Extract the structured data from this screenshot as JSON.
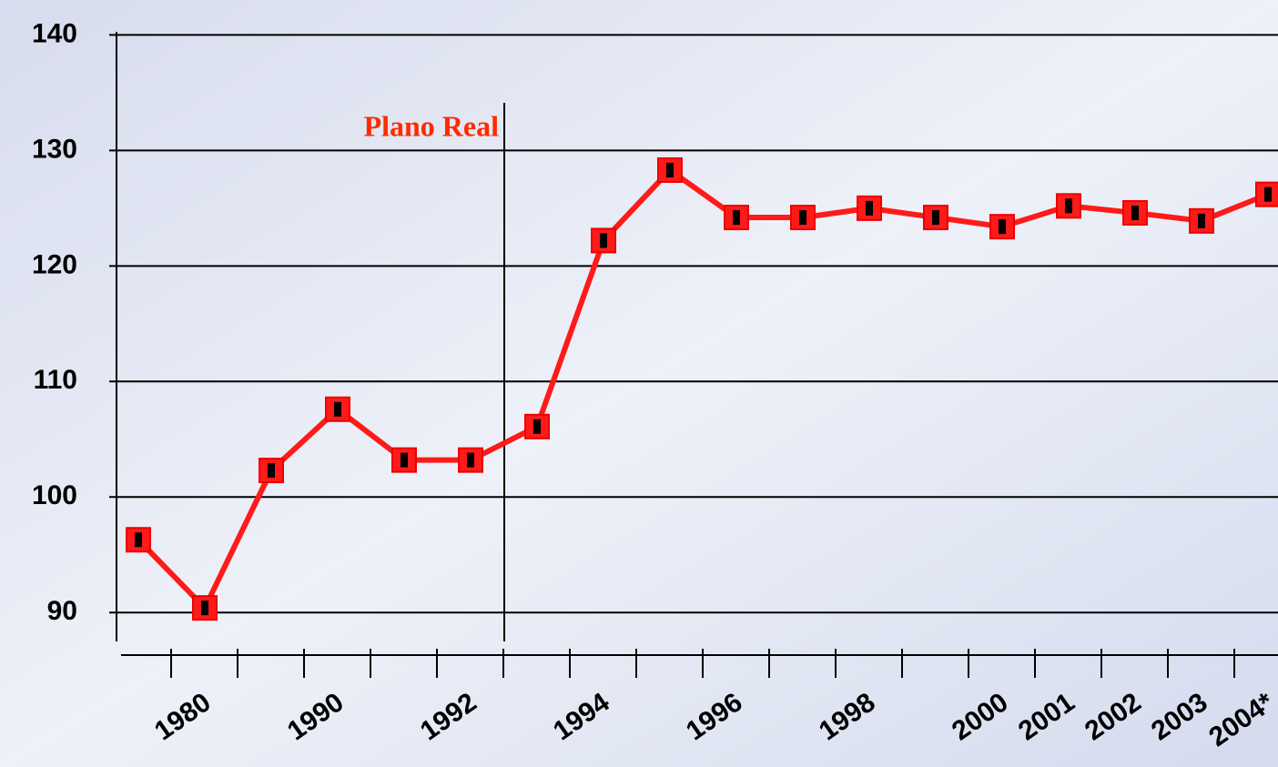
{
  "chart_data": {
    "type": "line",
    "annotation": "Plano Real",
    "categories": [
      null,
      "1980",
      null,
      "1990",
      null,
      "1992",
      null,
      "1994",
      null,
      "1996",
      null,
      "1998",
      null,
      "2000",
      "2001",
      "2002",
      "2003",
      "2004*"
    ],
    "series": [
      {
        "name": null,
        "color": "#ff1a1a",
        "values": [
          96.3,
          90.4,
          102.3,
          107.6,
          103.2,
          103.2,
          106.1,
          122.2,
          128.3,
          124.2,
          124.2,
          125.0,
          124.2,
          123.4,
          125.2,
          124.6,
          123.9,
          126.2
        ]
      }
    ],
    "ylim": [
      87.5,
      142
    ],
    "yticks": [
      90,
      100,
      110,
      120,
      130,
      140
    ],
    "grid": true
  }
}
